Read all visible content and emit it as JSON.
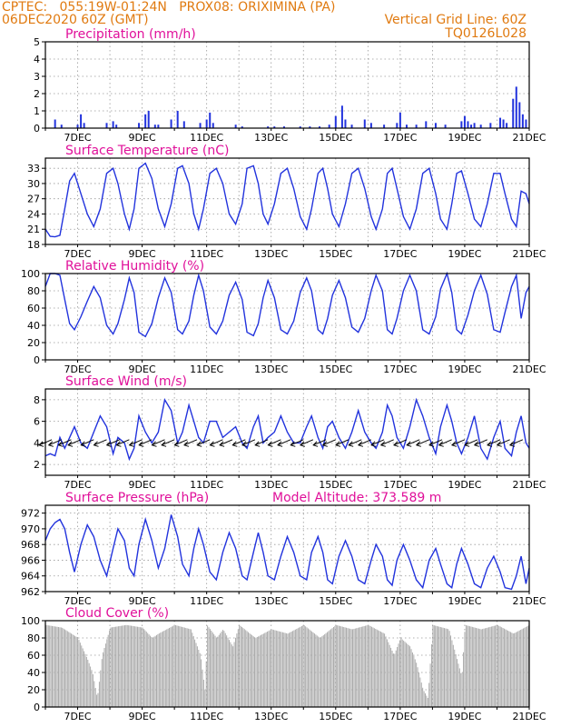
{
  "header": {
    "line1": "CPTEC:   055:19W-01:24N   PROX08: ORIXIMINA (PA)",
    "line2_left": "06DEC2020 60Z (GMT)",
    "line2_right": "Vertical Grid Line: 60Z",
    "line3_right": "TQ0126L028"
  },
  "colors": {
    "header": "#e07a10",
    "title": "#e0109a",
    "line": "#2233dd",
    "cloud": "#aaaaaa",
    "grid": "#999999"
  },
  "chart_data": [
    {
      "type": "bar",
      "title": "Precipitation (mm/h)",
      "ylim": [
        0,
        5
      ],
      "yticks": [
        0,
        1,
        2,
        3,
        4,
        5
      ],
      "xticks": [
        "7DEC",
        "9DEC",
        "11DEC",
        "13DEC",
        "15DEC",
        "17DEC",
        "19DEC",
        "21DEC"
      ],
      "x_day": [
        6.3,
        6.5,
        7.0,
        7.1,
        7.2,
        7.9,
        8.1,
        8.2,
        8.9,
        9.1,
        9.2,
        9.4,
        9.5,
        9.9,
        10.1,
        10.3,
        10.8,
        11.0,
        11.1,
        11.2,
        11.9,
        12.1,
        12.9,
        13.1,
        13.4,
        13.9,
        14.2,
        14.5,
        14.8,
        15.0,
        15.2,
        15.3,
        15.5,
        15.9,
        16.1,
        16.5,
        16.9,
        17.0,
        17.2,
        17.5,
        17.8,
        18.1,
        18.4,
        18.9,
        19.0,
        19.1,
        19.2,
        19.3,
        19.5,
        19.8,
        20.1,
        20.2,
        20.3,
        20.5,
        20.6,
        20.7,
        20.8,
        20.9
      ],
      "values": [
        0.5,
        0.2,
        0.2,
        0.8,
        0.3,
        0.3,
        0.4,
        0.2,
        0.3,
        0.8,
        1.0,
        0.2,
        0.2,
        0.5,
        1.0,
        0.4,
        0.3,
        0.5,
        0.9,
        0.3,
        0.2,
        0.1,
        0.1,
        0.1,
        0.1,
        0.1,
        0.1,
        0.1,
        0.2,
        0.7,
        1.3,
        0.5,
        0.2,
        0.5,
        0.3,
        0.2,
        0.3,
        0.9,
        0.2,
        0.2,
        0.4,
        0.3,
        0.2,
        0.4,
        0.7,
        0.4,
        0.2,
        0.3,
        0.2,
        0.3,
        0.6,
        0.5,
        0.3,
        1.7,
        2.4,
        1.5,
        0.8,
        0.5
      ]
    },
    {
      "type": "line",
      "title": "Surface Temperature (nC)",
      "ylim": [
        18,
        35
      ],
      "yticks": [
        18,
        21,
        24,
        27,
        30,
        33
      ],
      "xticks": [
        "7DEC",
        "9DEC",
        "11DEC",
        "13DEC",
        "15DEC",
        "17DEC",
        "19DEC",
        "21DEC"
      ],
      "x_day": [
        6.0,
        6.15,
        6.3,
        6.45,
        6.6,
        6.75,
        6.9,
        7.1,
        7.3,
        7.5,
        7.7,
        7.9,
        8.1,
        8.25,
        8.45,
        8.6,
        8.75,
        8.9,
        9.1,
        9.3,
        9.5,
        9.7,
        9.9,
        10.1,
        10.25,
        10.45,
        10.6,
        10.75,
        10.9,
        11.1,
        11.3,
        11.5,
        11.7,
        11.9,
        12.1,
        12.25,
        12.45,
        12.6,
        12.75,
        12.9,
        13.1,
        13.3,
        13.5,
        13.7,
        13.9,
        14.1,
        14.25,
        14.45,
        14.6,
        14.75,
        14.9,
        15.1,
        15.3,
        15.5,
        15.7,
        15.9,
        16.1,
        16.25,
        16.45,
        16.6,
        16.75,
        16.9,
        17.1,
        17.3,
        17.5,
        17.7,
        17.9,
        18.1,
        18.25,
        18.45,
        18.6,
        18.75,
        18.9,
        19.1,
        19.3,
        19.5,
        19.7,
        19.9,
        20.1,
        20.25,
        20.45,
        20.6,
        20.75,
        20.9,
        21.0
      ],
      "values": [
        21,
        19.6,
        19.5,
        19.8,
        25,
        30.5,
        32,
        28,
        24,
        21.5,
        25,
        32,
        33,
        30,
        24,
        21,
        25,
        33,
        34,
        31,
        25,
        21.5,
        26,
        33,
        33.5,
        30,
        24,
        21,
        25,
        32,
        33,
        30,
        24,
        22,
        26,
        33,
        33.5,
        30,
        24,
        22,
        26,
        32,
        33,
        29,
        23.5,
        21,
        25,
        32,
        33,
        29,
        24,
        21.5,
        26,
        32,
        33,
        29,
        23.5,
        21,
        25,
        32,
        33,
        29,
        23.5,
        21,
        25,
        32,
        33,
        28,
        23,
        21,
        26,
        32,
        32.5,
        28,
        23,
        21.5,
        26,
        32,
        32,
        28,
        23,
        21.5,
        28.5,
        28,
        26
      ]
    },
    {
      "type": "line",
      "title": "Relative Humidity (%)",
      "ylim": [
        0,
        100
      ],
      "yticks": [
        0,
        20,
        40,
        60,
        80,
        100
      ],
      "xticks": [
        "7DEC",
        "9DEC",
        "11DEC",
        "13DEC",
        "15DEC",
        "17DEC",
        "19DEC",
        "21DEC"
      ],
      "x_day": [
        6.0,
        6.15,
        6.3,
        6.45,
        6.6,
        6.75,
        6.9,
        7.1,
        7.3,
        7.5,
        7.7,
        7.9,
        8.1,
        8.25,
        8.45,
        8.6,
        8.75,
        8.9,
        9.1,
        9.3,
        9.5,
        9.7,
        9.9,
        10.1,
        10.25,
        10.45,
        10.6,
        10.75,
        10.9,
        11.1,
        11.3,
        11.5,
        11.7,
        11.9,
        12.1,
        12.25,
        12.45,
        12.6,
        12.75,
        12.9,
        13.1,
        13.3,
        13.5,
        13.7,
        13.9,
        14.1,
        14.25,
        14.45,
        14.6,
        14.75,
        14.9,
        15.1,
        15.3,
        15.5,
        15.7,
        15.9,
        16.1,
        16.25,
        16.45,
        16.6,
        16.75,
        16.9,
        17.1,
        17.3,
        17.5,
        17.7,
        17.9,
        18.1,
        18.25,
        18.45,
        18.6,
        18.75,
        18.9,
        19.1,
        19.3,
        19.5,
        19.7,
        19.9,
        20.1,
        20.25,
        20.45,
        20.6,
        20.75,
        20.9,
        21.0
      ],
      "values": [
        85,
        100,
        100,
        98,
        70,
        42,
        35,
        50,
        68,
        85,
        72,
        40,
        30,
        42,
        70,
        95,
        78,
        32,
        27,
        42,
        72,
        95,
        78,
        35,
        30,
        45,
        75,
        98,
        80,
        38,
        30,
        45,
        75,
        90,
        70,
        32,
        28,
        42,
        72,
        92,
        72,
        35,
        30,
        45,
        78,
        95,
        80,
        35,
        30,
        48,
        75,
        92,
        72,
        38,
        32,
        48,
        80,
        98,
        80,
        35,
        30,
        48,
        80,
        98,
        80,
        35,
        30,
        50,
        82,
        100,
        78,
        35,
        30,
        52,
        80,
        98,
        76,
        35,
        32,
        55,
        85,
        98,
        48,
        78,
        85
      ]
    },
    {
      "type": "line",
      "title": "Surface Wind (m/s)",
      "ylim": [
        1,
        9
      ],
      "yticks": [
        2,
        4,
        6,
        8
      ],
      "xticks": [
        "7DEC",
        "9DEC",
        "11DEC",
        "13DEC",
        "15DEC",
        "17DEC",
        "19DEC",
        "21DEC"
      ],
      "x_day": [
        6.0,
        6.15,
        6.3,
        6.45,
        6.6,
        6.75,
        6.9,
        7.1,
        7.3,
        7.5,
        7.7,
        7.9,
        8.1,
        8.25,
        8.45,
        8.6,
        8.75,
        8.9,
        9.1,
        9.3,
        9.5,
        9.7,
        9.9,
        10.1,
        10.25,
        10.45,
        10.6,
        10.75,
        10.9,
        11.1,
        11.3,
        11.5,
        11.7,
        11.9,
        12.1,
        12.25,
        12.45,
        12.6,
        12.75,
        12.9,
        13.1,
        13.3,
        13.5,
        13.7,
        13.9,
        14.1,
        14.25,
        14.45,
        14.6,
        14.75,
        14.9,
        15.1,
        15.3,
        15.5,
        15.7,
        15.9,
        16.1,
        16.25,
        16.45,
        16.6,
        16.75,
        16.9,
        17.1,
        17.3,
        17.5,
        17.7,
        17.9,
        18.1,
        18.25,
        18.45,
        18.6,
        18.75,
        18.9,
        19.1,
        19.3,
        19.5,
        19.7,
        19.9,
        20.1,
        20.25,
        20.45,
        20.6,
        20.75,
        20.9,
        21.0
      ],
      "values": [
        2.8,
        3,
        2.8,
        4.5,
        3.5,
        4.5,
        5.5,
        4,
        3.5,
        5,
        6.5,
        5.5,
        3,
        4.5,
        4,
        2.5,
        3.5,
        6.5,
        5,
        4,
        5,
        8,
        7,
        4,
        5,
        7.5,
        6,
        4.5,
        4,
        6,
        6,
        4.5,
        5,
        5.5,
        4,
        3.5,
        5.5,
        6.5,
        4,
        4.5,
        5,
        6.5,
        5,
        4,
        4,
        5.5,
        6.5,
        4.5,
        3.5,
        5.5,
        6,
        4.5,
        3.5,
        5,
        7,
        5,
        4,
        3.5,
        5,
        7.5,
        6.5,
        4.5,
        3.5,
        5.5,
        8,
        6.5,
        4.5,
        3,
        5.5,
        7.5,
        6,
        4,
        3,
        4.5,
        6.5,
        3.5,
        2.5,
        4.5,
        6,
        3.5,
        2.8,
        5,
        6.5,
        4,
        3.5
      ],
      "arrows_day": [
        6.2,
        6.5,
        6.8,
        7.1,
        7.5,
        7.9,
        8.3,
        8.6,
        9.0,
        9.3,
        9.7,
        10.0,
        10.4,
        10.7,
        11.1,
        11.5,
        11.8,
        12.2,
        12.5,
        12.9,
        13.3,
        13.6,
        14.0,
        14.3,
        14.7,
        15.0,
        15.4,
        15.8,
        16.1,
        16.5,
        16.8,
        17.2,
        17.6,
        17.9,
        18.3,
        18.6,
        19.0,
        19.4,
        19.7,
        20.1,
        20.4,
        20.8
      ]
    },
    {
      "type": "line",
      "title": "Surface Pressure (hPa)",
      "annotation": "Model Altitude: 373.589 m",
      "ylim": [
        962,
        973
      ],
      "yticks": [
        962,
        964,
        966,
        968,
        970,
        972
      ],
      "xticks": [
        "7DEC",
        "9DEC",
        "11DEC",
        "13DEC",
        "15DEC",
        "17DEC",
        "19DEC",
        "21DEC"
      ],
      "x_day": [
        6.0,
        6.15,
        6.3,
        6.45,
        6.6,
        6.75,
        6.9,
        7.1,
        7.3,
        7.5,
        7.7,
        7.9,
        8.1,
        8.25,
        8.45,
        8.6,
        8.75,
        8.9,
        9.1,
        9.3,
        9.5,
        9.7,
        9.9,
        10.1,
        10.25,
        10.45,
        10.6,
        10.75,
        10.9,
        11.1,
        11.3,
        11.5,
        11.7,
        11.9,
        12.1,
        12.25,
        12.45,
        12.6,
        12.75,
        12.9,
        13.1,
        13.3,
        13.5,
        13.7,
        13.9,
        14.1,
        14.25,
        14.45,
        14.6,
        14.75,
        14.9,
        15.1,
        15.3,
        15.5,
        15.7,
        15.9,
        16.1,
        16.25,
        16.45,
        16.6,
        16.75,
        16.9,
        17.1,
        17.3,
        17.5,
        17.7,
        17.9,
        18.1,
        18.25,
        18.45,
        18.6,
        18.75,
        18.9,
        19.1,
        19.3,
        19.5,
        19.7,
        19.9,
        20.1,
        20.25,
        20.45,
        20.6,
        20.75,
        20.9,
        21.0
      ],
      "values": [
        968.5,
        970,
        970.8,
        971.2,
        970,
        967,
        964.5,
        968,
        970.5,
        969,
        966,
        964,
        967.5,
        970,
        968.5,
        965,
        964,
        968,
        971.2,
        968.5,
        965,
        967.5,
        971.8,
        969,
        965.5,
        964,
        967.5,
        970,
        968,
        964.5,
        963.5,
        967,
        969.5,
        967.5,
        964,
        963.5,
        967,
        969.5,
        967,
        964,
        963.5,
        966.5,
        969,
        967,
        964,
        963.5,
        967,
        969,
        967,
        963.5,
        963,
        966.5,
        968.5,
        966.5,
        963.5,
        963,
        966,
        968,
        966.5,
        963.5,
        962.8,
        966,
        968,
        966,
        963.5,
        962.5,
        966,
        967.5,
        965.5,
        963,
        962.5,
        965.5,
        967.5,
        965.5,
        963,
        962.5,
        965,
        966.5,
        964.5,
        962.5,
        962.3,
        964,
        966.5,
        963,
        965
      ]
    },
    {
      "type": "bar",
      "title": "Cloud Cover (%)",
      "ylim": [
        0,
        100
      ],
      "yticks": [
        0,
        20,
        40,
        60,
        80,
        100
      ],
      "xticks": [
        "7DEC",
        "9DEC",
        "11DEC",
        "13DEC",
        "15DEC",
        "17DEC",
        "19DEC",
        "21DEC"
      ],
      "x_day": [
        6.0,
        6.5,
        7.0,
        7.3,
        7.45,
        7.6,
        7.75,
        8.0,
        8.5,
        9.0,
        9.3,
        9.5,
        10.0,
        10.5,
        10.8,
        10.95,
        11.0,
        11.3,
        11.5,
        11.8,
        12.0,
        12.5,
        13.0,
        13.5,
        14.0,
        14.5,
        15.0,
        15.5,
        16.0,
        16.5,
        16.8,
        17.0,
        17.3,
        17.5,
        17.7,
        17.85,
        18.0,
        18.5,
        18.9,
        19.0,
        19.5,
        20.0,
        20.5,
        21.0
      ],
      "values": [
        95,
        92,
        80,
        55,
        40,
        10,
        60,
        92,
        95,
        92,
        80,
        85,
        95,
        90,
        60,
        15,
        95,
        80,
        90,
        70,
        95,
        80,
        90,
        85,
        95,
        80,
        95,
        90,
        95,
        85,
        60,
        80,
        70,
        50,
        20,
        10,
        95,
        90,
        35,
        95,
        90,
        95,
        85,
        95
      ]
    }
  ]
}
